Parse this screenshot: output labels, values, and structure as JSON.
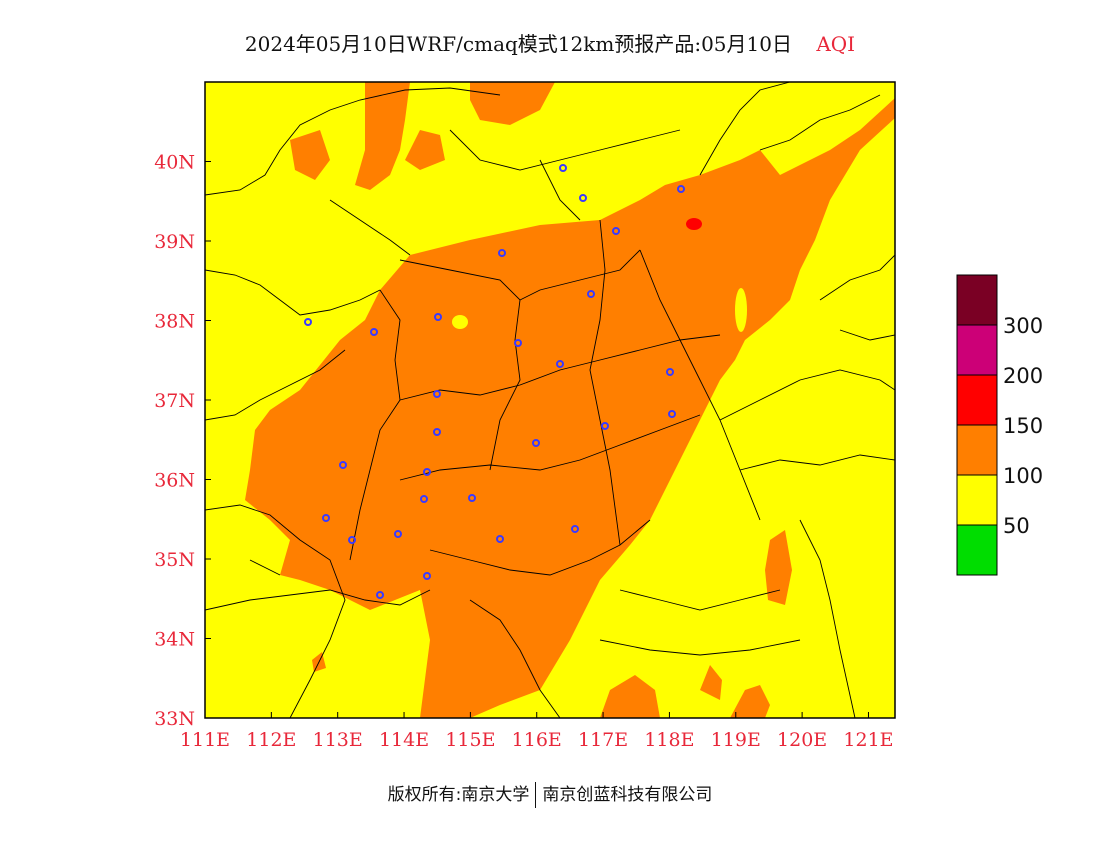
{
  "title": {
    "main": "2024年05月10日WRF/cmaq模式12km预报产品:05月10日",
    "product": "AQI"
  },
  "map": {
    "lon_ticks": [
      "111E",
      "112E",
      "113E",
      "114E",
      "115E",
      "116E",
      "117E",
      "118E",
      "119E",
      "120E",
      "121E"
    ],
    "lat_ticks": [
      "40N",
      "39N",
      "38N",
      "37N",
      "36N",
      "35N",
      "34N",
      "33N"
    ],
    "lon_range": [
      111,
      121.4
    ],
    "lat_range": [
      33,
      41
    ]
  },
  "legend": {
    "levels": [
      {
        "label": "",
        "color": "#00dd00"
      },
      {
        "label": "50",
        "color": "#ffff00"
      },
      {
        "label": "100",
        "color": "#ff7f00"
      },
      {
        "label": "150",
        "color": "#ff0000"
      },
      {
        "label": "200",
        "color": "#cc0077"
      },
      {
        "label": "300",
        "color": "#7a0024"
      }
    ]
  },
  "footer": {
    "left": "版权所有:南京大学",
    "right": "南京创蓝科技有限公司"
  }
}
